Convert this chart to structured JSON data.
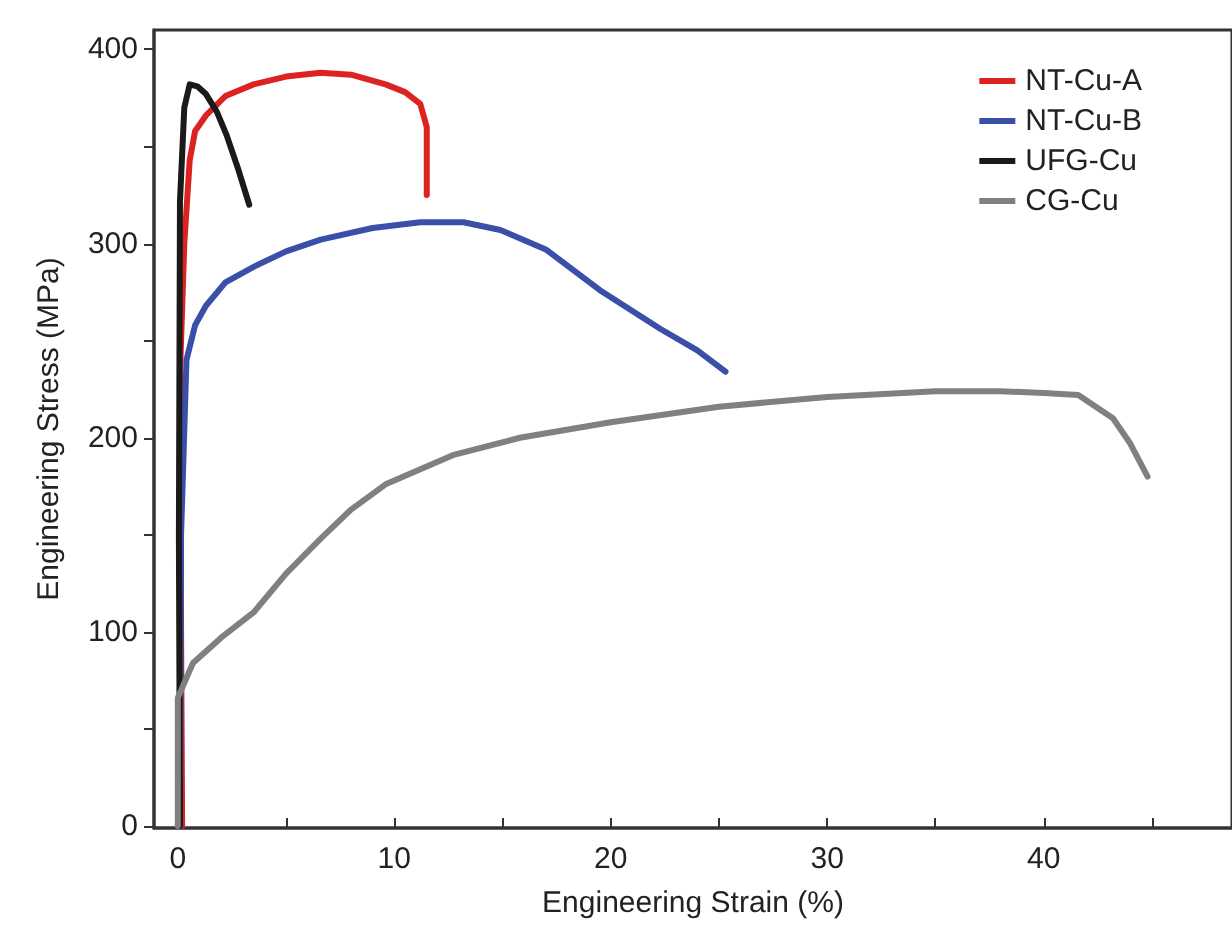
{
  "chart_data": {
    "type": "line",
    "xlabel": "Engineering Strain (%)",
    "ylabel": "Engineering Stress (MPa)",
    "xlim": [
      -1.1,
      48.7
    ],
    "ylim": [
      -1,
      410
    ],
    "xticks": [
      0,
      {
        "value": 5,
        "label": null
      },
      10,
      {
        "value": 15,
        "label": null
      },
      20,
      {
        "value": 25,
        "label": null
      },
      30,
      {
        "value": 35,
        "label": null
      },
      40,
      {
        "value": 45,
        "label": null
      }
    ],
    "yticks": [
      0,
      {
        "value": 50,
        "label": null
      },
      100,
      {
        "value": 150,
        "label": null
      },
      200,
      {
        "value": 250,
        "label": null
      },
      300,
      {
        "value": 350,
        "label": null
      },
      400
    ],
    "grid": false,
    "legend": "top right",
    "marker": "none",
    "line_style": "solid",
    "series": [
      {
        "name": "NT-Cu-A",
        "color": "#dd2222",
        "x": [
          0.2,
          0.15,
          0.1,
          0.3,
          0.55,
          0.8,
          1.3,
          2.2,
          3.5,
          5,
          6.6,
          8,
          9.6,
          10.5,
          11.2,
          11.5,
          11.5,
          11.5
        ],
        "values": [
          0,
          100,
          233,
          300,
          343,
          358,
          366,
          376,
          382,
          386,
          388,
          387,
          382,
          378,
          372,
          360,
          340,
          325
        ]
      },
      {
        "name": "NT-Cu-B",
        "color": "#3a4fa8",
        "x": [
          0.1,
          0.15,
          0.4,
          0.8,
          1.3,
          2.2,
          3.5,
          5,
          6.6,
          9,
          11.2,
          13.2,
          14.9,
          17,
          19.5,
          22.3,
          24,
          25.3
        ],
        "values": [
          0,
          150,
          240,
          258,
          268,
          280,
          288,
          296,
          302,
          308,
          311,
          311,
          307,
          297,
          276,
          256,
          245,
          234
        ]
      },
      {
        "name": "UFG-Cu",
        "color": "#1a1a1a",
        "x": [
          0.1,
          0.05,
          0.1,
          0.3,
          0.55,
          0.9,
          1.3,
          1.8,
          2.25,
          2.8,
          3.3
        ],
        "values": [
          0,
          150,
          322,
          370,
          382,
          381,
          377,
          368,
          356,
          338,
          320
        ]
      },
      {
        "name": "CG-Cu",
        "color": "#808080",
        "x": [
          0,
          0,
          0.7,
          2,
          3.5,
          5,
          6.6,
          8,
          9.6,
          12.7,
          15.8,
          20,
          25,
          30,
          35,
          38,
          40,
          41.6,
          43.2,
          44,
          44.8
        ],
        "values": [
          0,
          66,
          84,
          97,
          110,
          130,
          148,
          163,
          176,
          191,
          200,
          208,
          216,
          221,
          224,
          224,
          223,
          222,
          210,
          197,
          180
        ]
      }
    ]
  }
}
